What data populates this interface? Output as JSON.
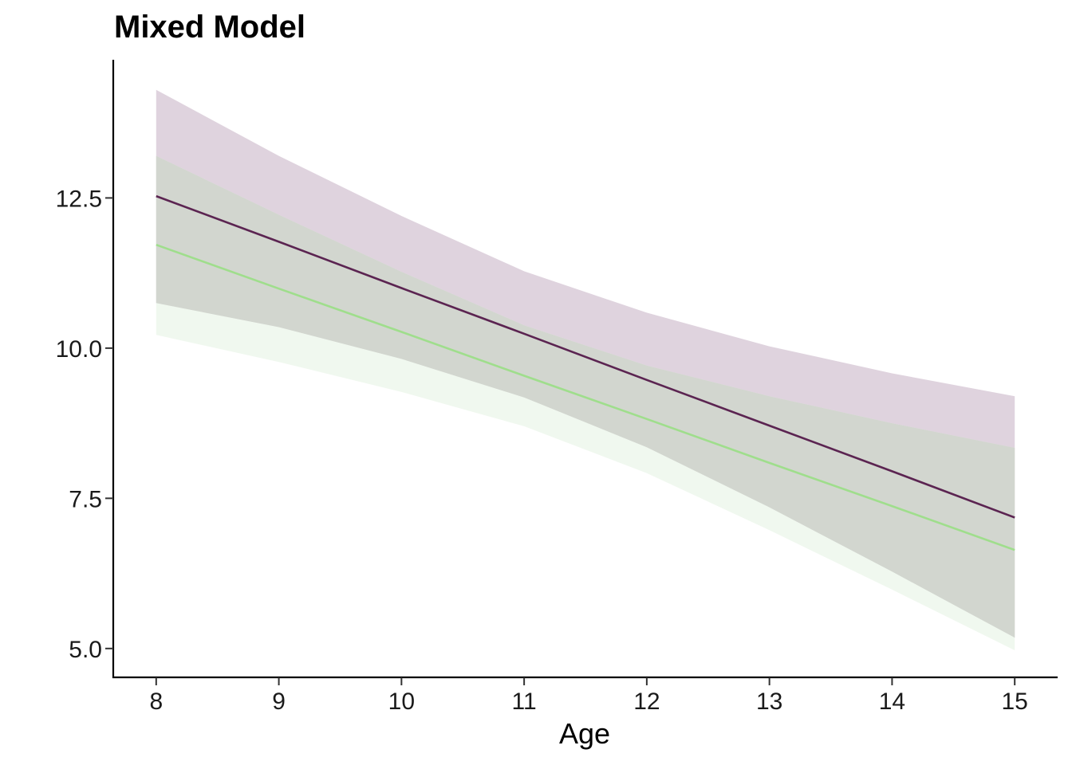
{
  "chart_data": {
    "type": "line",
    "title": "Mixed Model",
    "xlabel": "Age",
    "ylabel": "",
    "xlim": [
      7.65,
      15.35
    ],
    "ylim": [
      4.52,
      14.8
    ],
    "x_ticks": [
      8,
      9,
      10,
      11,
      12,
      13,
      14,
      15
    ],
    "y_ticks": [
      5.0,
      7.5,
      10.0,
      12.5
    ],
    "y_tick_labels": [
      "5.0",
      "7.5",
      "10.0",
      "12.5"
    ],
    "grid": false,
    "legend": "none",
    "x": [
      8,
      9,
      10,
      11,
      12,
      13,
      14,
      15
    ],
    "series": [
      {
        "color": "#5b2451",
        "ribbon_color": "#dfd3de",
        "values": [
          12.53,
          11.77,
          11.0,
          10.24,
          9.47,
          8.71,
          7.95,
          7.18
        ],
        "lower": [
          10.75,
          10.35,
          9.82,
          9.18,
          8.35,
          7.35,
          6.28,
          5.18
        ],
        "upper": [
          14.3,
          13.2,
          12.2,
          11.28,
          10.59,
          10.03,
          9.58,
          9.2
        ]
      },
      {
        "color": "#9fde8c",
        "ribbon_color": "#ebf5ea",
        "values": [
          11.72,
          10.99,
          10.27,
          9.54,
          8.82,
          8.09,
          7.37,
          6.64
        ],
        "lower": [
          10.22,
          9.77,
          9.27,
          8.7,
          7.92,
          6.97,
          5.98,
          4.97
        ],
        "upper": [
          13.2,
          12.22,
          11.27,
          10.38,
          9.71,
          9.2,
          8.75,
          8.34
        ]
      }
    ]
  }
}
